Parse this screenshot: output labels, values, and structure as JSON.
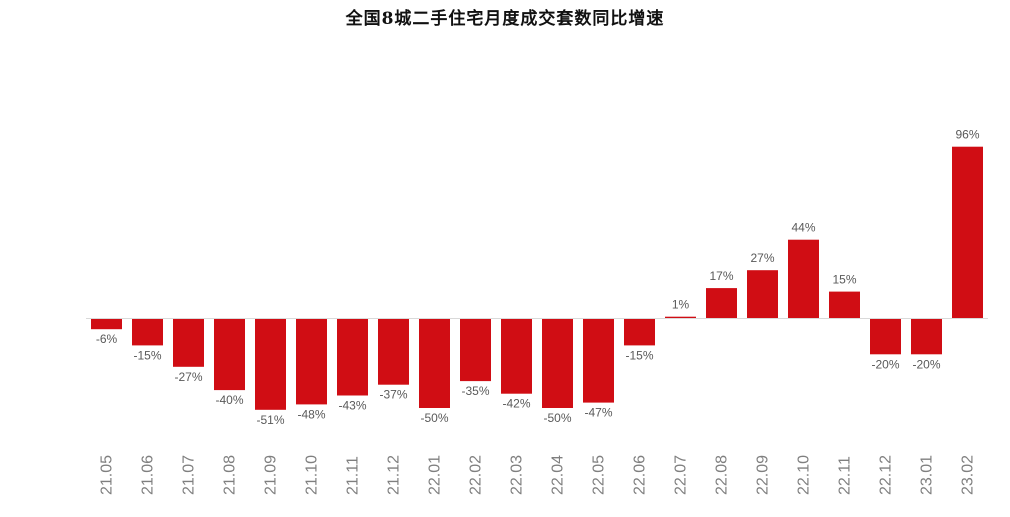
{
  "colors": {
    "bar": "#d00d14",
    "axis": "#d9d9d9",
    "label": "#595959",
    "tick": "#7f7f7f"
  },
  "chart_data": {
    "type": "bar",
    "title": "全国8城二手住宅月度成交套数同比增速",
    "xlabel": "",
    "ylabel": "",
    "grid": false,
    "legend": "none",
    "ylim": [
      -60,
      105
    ],
    "categories": [
      "21.05",
      "21.06",
      "21.07",
      "21.08",
      "21.09",
      "21.10",
      "21.11",
      "21.12",
      "22.01",
      "22.02",
      "22.03",
      "22.04",
      "22.05",
      "22.06",
      "22.07",
      "22.08",
      "22.09",
      "22.10",
      "22.11",
      "22.12",
      "23.01",
      "23.02"
    ],
    "values": [
      -6,
      -15,
      -27,
      -40,
      -51,
      -48,
      -43,
      -37,
      -50,
      -35,
      -42,
      -50,
      -47,
      -15,
      1,
      17,
      27,
      44,
      15,
      -20,
      -20,
      96
    ],
    "data_labels": [
      "-6%",
      "-15%",
      "-27%",
      "-40%",
      "-51%",
      "-48%",
      "-43%",
      "-37%",
      "-50%",
      "-35%",
      "-42%",
      "-50%",
      "-47%",
      "-15%",
      "1%",
      "17%",
      "27%",
      "44%",
      "15%",
      "-20%",
      "-20%",
      "96%"
    ]
  }
}
